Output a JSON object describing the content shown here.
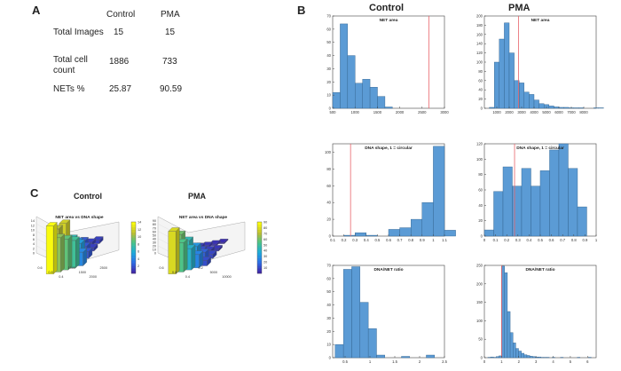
{
  "panels": {
    "a_label": "A",
    "b_label": "B",
    "c_label": "C"
  },
  "table": {
    "columns": [
      "Control",
      "PMA"
    ],
    "rows": [
      {
        "label": "Total Images",
        "control": "15",
        "pma": "15"
      },
      {
        "label": "Total cell\ncount",
        "control": "1886",
        "pma": "733"
      },
      {
        "label": "NETs %",
        "control": "25.87",
        "pma": "90.59"
      }
    ]
  },
  "b_headers": {
    "control": "Control",
    "pma": "PMA"
  },
  "c_headers": {
    "control": "Control",
    "pma": "PMA"
  },
  "colors": {
    "bar": "#5B9BD5",
    "bar_edge": "#2F5F8A",
    "threshold": "#E8636A"
  },
  "chart_data": [
    {
      "id": "control-net-area",
      "type": "bar",
      "title": "NET area",
      "group": "Control",
      "bin_start": 500,
      "bin_width": 167,
      "values": [
        12,
        64,
        40,
        19,
        22,
        16,
        9,
        1,
        0,
        0,
        0,
        0,
        0,
        0,
        0
      ],
      "xlim": [
        500,
        3000
      ],
      "ylim": [
        0,
        70
      ],
      "xticks": [
        500,
        1000,
        1500,
        2000,
        2500,
        3000
      ],
      "xtick_labels": [
        "500",
        "1000",
        "1500",
        "2000",
        "2500",
        "3000"
      ],
      "yticks": [
        0,
        10,
        20,
        30,
        40,
        50,
        60,
        70
      ],
      "threshold": 2650
    },
    {
      "id": "pma-net-area",
      "type": "bar",
      "title": "NET area",
      "group": "PMA",
      "bin_start": 400,
      "bin_width": 400,
      "values": [
        2,
        100,
        150,
        185,
        120,
        60,
        55,
        35,
        30,
        18,
        10,
        8,
        5,
        3,
        2,
        2,
        1,
        1,
        1,
        0,
        0,
        1,
        1
      ],
      "xlim": [
        0,
        9000
      ],
      "ylim": [
        0,
        200
      ],
      "xticks": [
        1000,
        2000,
        3000,
        4000,
        5000,
        6000,
        7000,
        8000
      ],
      "xtick_labels": [
        "1000",
        "2000",
        "3000",
        "4000",
        "5000",
        "6000",
        "7000",
        "8000"
      ],
      "yticks": [
        0,
        20,
        40,
        60,
        80,
        100,
        120,
        140,
        160,
        180,
        200
      ],
      "threshold": 2750
    },
    {
      "id": "control-dna-shape",
      "type": "bar",
      "title": "DNA shape, 1 = circular",
      "group": "Control",
      "bin_start": 0.1,
      "bin_width": 0.1,
      "values": [
        0,
        1,
        4,
        1,
        0,
        8,
        10,
        20,
        40,
        107,
        7
      ],
      "xlim": [
        0.1,
        1.1
      ],
      "ylim": [
        0,
        110
      ],
      "xticks": [
        0.1,
        0.2,
        0.3,
        0.4,
        0.5,
        0.6,
        0.7,
        0.8,
        0.9,
        1,
        1.1
      ],
      "xtick_labels": [
        "0.1",
        "0.2",
        "0.3",
        "0.4",
        "0.5",
        "0.6",
        "0.7",
        "0.8",
        "0.9",
        "1",
        "1.1"
      ],
      "yticks": [
        0,
        20,
        40,
        60,
        80,
        100
      ],
      "threshold": 0.26
    },
    {
      "id": "pma-dna-shape",
      "type": "bar",
      "title": "DNA shape, 1 = circular",
      "group": "PMA",
      "bin_start": 0,
      "bin_width": 0.0833,
      "values": [
        8,
        58,
        90,
        65,
        88,
        65,
        85,
        112,
        120,
        88,
        38
      ],
      "xlim": [
        0,
        1
      ],
      "ylim": [
        0,
        120
      ],
      "xticks": [
        0,
        0.1,
        0.2,
        0.3,
        0.4,
        0.5,
        0.6,
        0.7,
        0.8,
        0.9,
        1
      ],
      "xtick_labels": [
        "0",
        "0.1",
        "0.2",
        "0.3",
        "0.4",
        "0.5",
        "0.6",
        "0.7",
        "0.8",
        "0.9",
        "1"
      ],
      "yticks": [
        0,
        20,
        40,
        60,
        80,
        100,
        120
      ],
      "threshold": 0.27
    },
    {
      "id": "control-dna-net-ratio",
      "type": "bar",
      "title": "DNA/NET ratio",
      "group": "Control",
      "bin_start": 0.3,
      "bin_width": 0.1667,
      "values": [
        10,
        67,
        69,
        42,
        22,
        2,
        0,
        0,
        1,
        0,
        0,
        2,
        0
      ],
      "xlim": [
        0.25,
        2.5
      ],
      "ylim": [
        0,
        70
      ],
      "xticks": [
        0.5,
        1,
        1.5,
        2,
        2.5
      ],
      "xtick_labels": [
        "0.5",
        "1",
        "1.5",
        "2",
        "2.5"
      ],
      "yticks": [
        0,
        10,
        20,
        30,
        40,
        50,
        60,
        70
      ],
      "threshold": null
    },
    {
      "id": "pma-dna-net-ratio",
      "type": "bar",
      "title": "DNA/NET ratio",
      "group": "PMA",
      "bin_start": 0.2,
      "bin_width": 0.1625,
      "values": [
        1,
        2,
        1,
        3,
        5,
        248,
        230,
        125,
        68,
        40,
        25,
        18,
        12,
        8,
        6,
        4,
        3,
        2,
        2,
        1,
        1,
        1,
        0,
        1,
        0,
        0,
        1,
        0,
        0,
        0,
        0,
        0,
        1,
        0,
        0,
        0,
        1
      ],
      "xlim": [
        0,
        6.5
      ],
      "ylim": [
        0,
        250
      ],
      "xticks": [
        0,
        1,
        2,
        3,
        4,
        5,
        6
      ],
      "xtick_labels": [
        "0",
        "1",
        "2",
        "3",
        "4",
        "5",
        "6"
      ],
      "yticks": [
        0,
        50,
        100,
        150,
        200,
        250
      ],
      "threshold": 1.0
    },
    {
      "id": "control-3d",
      "type": "bar3d",
      "title": "NET area vs DNA shape",
      "group": "Control",
      "grid": [
        [
          14,
          10,
          9,
          8,
          4
        ],
        [
          11,
          12,
          7,
          5,
          2
        ],
        [
          6,
          5,
          4,
          2,
          1
        ],
        [
          3,
          2,
          2,
          1,
          1
        ]
      ],
      "zlim": [
        0,
        14
      ],
      "colorbar_ticks": [
        2,
        4,
        6,
        8,
        10,
        12,
        14
      ],
      "axis_labels": [
        "0.6",
        "0.8",
        "0.4",
        "1000",
        "1500",
        "2000",
        "2500"
      ],
      "ztick_labels": [
        "0",
        "2",
        "4",
        "6",
        "8",
        "10",
        "12",
        "14"
      ]
    },
    {
      "id": "pma-3d",
      "type": "bar3d",
      "title": "NET area vs DNA shape",
      "group": "PMA",
      "grid": [
        [
          80,
          55,
          40,
          25,
          10
        ],
        [
          60,
          45,
          30,
          15,
          8
        ],
        [
          20,
          15,
          10,
          6,
          4
        ],
        [
          8,
          6,
          4,
          3,
          2
        ]
      ],
      "zlim": [
        0,
        90
      ],
      "colorbar_ticks": [
        10,
        20,
        30,
        40,
        50,
        60,
        70,
        80,
        90
      ],
      "axis_labels": [
        "0.6",
        "0.8",
        "0.4",
        "0.2",
        "5000",
        "10000"
      ],
      "ztick_labels": [
        "0",
        "10",
        "20",
        "30",
        "40",
        "50",
        "60",
        "70",
        "80",
        "90"
      ]
    }
  ]
}
